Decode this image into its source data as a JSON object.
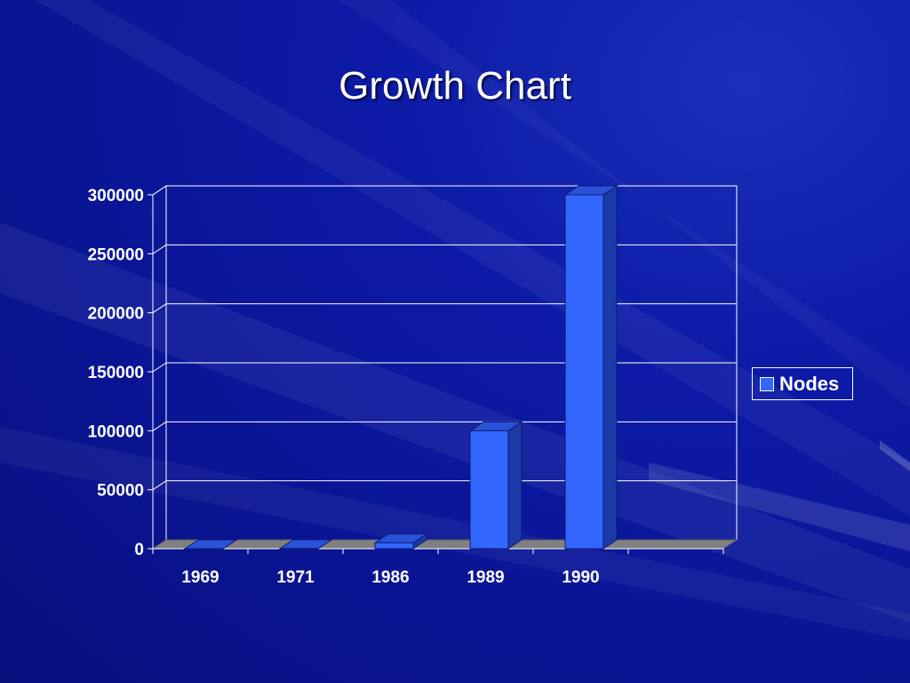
{
  "slide": {
    "title": "Growth Chart"
  },
  "colors": {
    "bar_front": "#3366ff",
    "bar_top": "#2a52d9",
    "bar_side": "#1b3aa8",
    "floor": "#808080",
    "gridline": "#ffffff"
  },
  "chart_data": {
    "type": "bar",
    "title": "Growth Chart",
    "categories": [
      "1969",
      "1971",
      "1986",
      "1989",
      "1990"
    ],
    "series": [
      {
        "name": "Nodes",
        "values": [
          4,
          100,
          5000,
          100000,
          300000
        ]
      }
    ],
    "ylim": [
      0,
      300000
    ],
    "yticks": [
      "0",
      "50000",
      "100000",
      "150000",
      "200000",
      "250000",
      "300000"
    ],
    "grid": true,
    "legend_position": "right",
    "three_d": true
  }
}
